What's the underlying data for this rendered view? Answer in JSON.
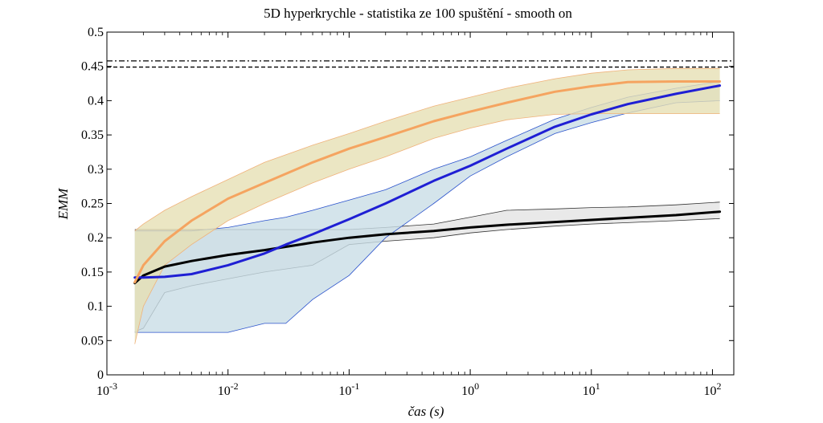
{
  "chart_data": {
    "type": "line",
    "title": "5D hyperkrychle - statistika ze 100 spuštění - smooth on",
    "xlabel": "čas (s)",
    "ylabel": "EMM",
    "x_scale": "log",
    "xlim": [
      0.001,
      150
    ],
    "ylim": [
      0,
      0.5
    ],
    "grid": false,
    "legend": "none",
    "x_ticks": [
      {
        "value": 0.001,
        "base": "10",
        "exp": "-3"
      },
      {
        "value": 0.01,
        "base": "10",
        "exp": "-2"
      },
      {
        "value": 0.1,
        "base": "10",
        "exp": "-1"
      },
      {
        "value": 1,
        "base": "10",
        "exp": "0"
      },
      {
        "value": 10,
        "base": "10",
        "exp": "1"
      },
      {
        "value": 100,
        "base": "10",
        "exp": "2"
      }
    ],
    "y_ticks": [
      {
        "value": 0,
        "label": "0"
      },
      {
        "value": 0.05,
        "label": "0.05"
      },
      {
        "value": 0.1,
        "label": "0.1"
      },
      {
        "value": 0.15,
        "label": "0.15"
      },
      {
        "value": 0.2,
        "label": "0.2"
      },
      {
        "value": 0.25,
        "label": "0.25"
      },
      {
        "value": 0.3,
        "label": "0.3"
      },
      {
        "value": 0.35,
        "label": "0.35"
      },
      {
        "value": 0.4,
        "label": "0.4"
      },
      {
        "value": 0.45,
        "label": "0.45"
      },
      {
        "value": 0.5,
        "label": "0.5"
      }
    ],
    "reference_lines": [
      {
        "y": 0.458,
        "style": "dashdot",
        "color": "#000000"
      },
      {
        "y": 0.449,
        "style": "dashed",
        "color": "#000000"
      }
    ],
    "series": [
      {
        "color": "#000000",
        "band_fill": "#e3e3e3",
        "band_edge": "#333333",
        "x": [
          0.0017,
          0.002,
          0.003,
          0.005,
          0.01,
          0.02,
          0.05,
          0.1,
          0.2,
          0.5,
          1,
          2,
          5,
          10,
          20,
          50,
          115
        ],
        "y": [
          0.134,
          0.145,
          0.158,
          0.166,
          0.175,
          0.182,
          0.193,
          0.2,
          0.205,
          0.21,
          0.215,
          0.219,
          0.223,
          0.226,
          0.229,
          0.233,
          0.238
        ],
        "upper": [
          0.212,
          0.212,
          0.212,
          0.212,
          0.212,
          0.212,
          0.212,
          0.212,
          0.215,
          0.22,
          0.23,
          0.24,
          0.242,
          0.244,
          0.245,
          0.248,
          0.252
        ],
        "lower": [
          0.063,
          0.068,
          0.12,
          0.13,
          0.14,
          0.15,
          0.16,
          0.19,
          0.195,
          0.2,
          0.207,
          0.212,
          0.217,
          0.22,
          0.222,
          0.225,
          0.228
        ]
      },
      {
        "color": "#1f1fd4",
        "band_fill": "#c9dde6",
        "band_edge": "#2a52cc",
        "x": [
          0.0017,
          0.002,
          0.003,
          0.005,
          0.01,
          0.02,
          0.03,
          0.05,
          0.1,
          0.2,
          0.5,
          1,
          2,
          5,
          10,
          20,
          50,
          115
        ],
        "y": [
          0.142,
          0.142,
          0.143,
          0.147,
          0.16,
          0.177,
          0.19,
          0.205,
          0.227,
          0.25,
          0.283,
          0.305,
          0.33,
          0.362,
          0.38,
          0.395,
          0.41,
          0.422
        ],
        "upper": [
          0.21,
          0.21,
          0.21,
          0.21,
          0.215,
          0.225,
          0.23,
          0.24,
          0.255,
          0.27,
          0.3,
          0.318,
          0.342,
          0.373,
          0.39,
          0.405,
          0.418,
          0.428
        ],
        "lower": [
          0.062,
          0.062,
          0.062,
          0.062,
          0.062,
          0.075,
          0.075,
          0.11,
          0.145,
          0.2,
          0.25,
          0.29,
          0.318,
          0.352,
          0.368,
          0.382,
          0.397,
          0.4
        ]
      },
      {
        "color": "#f5a460",
        "band_fill": "#e6e0b4",
        "band_edge": "#f0b27a",
        "x": [
          0.0017,
          0.002,
          0.003,
          0.005,
          0.01,
          0.02,
          0.05,
          0.1,
          0.2,
          0.5,
          1,
          2,
          5,
          10,
          20,
          50,
          115
        ],
        "y": [
          0.135,
          0.16,
          0.195,
          0.225,
          0.257,
          0.28,
          0.31,
          0.33,
          0.347,
          0.37,
          0.384,
          0.397,
          0.413,
          0.421,
          0.427,
          0.428,
          0.428
        ],
        "upper": [
          0.21,
          0.22,
          0.24,
          0.26,
          0.285,
          0.31,
          0.335,
          0.352,
          0.37,
          0.392,
          0.405,
          0.418,
          0.432,
          0.44,
          0.445,
          0.447,
          0.447
        ],
        "lower": [
          0.045,
          0.1,
          0.16,
          0.19,
          0.225,
          0.25,
          0.28,
          0.3,
          0.318,
          0.345,
          0.36,
          0.372,
          0.38,
          0.381,
          0.381,
          0.381,
          0.381
        ]
      }
    ]
  }
}
